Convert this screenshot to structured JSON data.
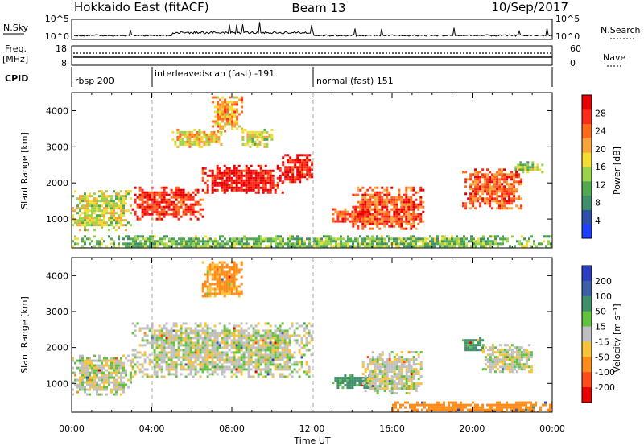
{
  "header": {
    "station": "Hokkaido East (fitACF)",
    "beam": "Beam 13",
    "date": "10/Sep/2017"
  },
  "panel_labels": {
    "nsky": "N.Sky",
    "freq_top": "Freq.",
    "freq_unit": "[MHz]",
    "cpid": "CPID",
    "nsearch": "N.Search",
    "nave": "Nave"
  },
  "nsky_axis": {
    "top": "10^5",
    "bottom": "10^0"
  },
  "freq_axis": {
    "top": "18",
    "bottom": "8"
  },
  "nave_axis": {
    "top": "60",
    "bottom": "0"
  },
  "cpid_segments": [
    {
      "label": "rbsp 200",
      "start_hour": 0
    },
    {
      "label": "interleavedscan (fast) -191",
      "start_hour": 4
    },
    {
      "label": "normal (fast) 151",
      "start_hour": 12
    }
  ],
  "x_axis": {
    "label": "Time UT",
    "ticks": [
      "00:00",
      "04:00",
      "08:00",
      "12:00",
      "16:00",
      "20:00",
      "00:00"
    ]
  },
  "y_axis": {
    "label": "Slant Range [km]",
    "ticks": [
      "1000",
      "2000",
      "3000",
      "4000"
    ]
  },
  "power_scale": {
    "title": "Power [dB]",
    "ticks": [
      "4",
      "8",
      "12",
      "16",
      "20",
      "24",
      "28"
    ],
    "colors": [
      "#1f3fff",
      "#2c4fa8",
      "#3f8f6a",
      "#52a84f",
      "#9bd34a",
      "#f4dc32",
      "#f7a53a",
      "#ff6a1a",
      "#ff2a1a",
      "#e80000"
    ]
  },
  "velocity_scale": {
    "title": "Velocity [m s⁻¹]",
    "ticks": [
      "200",
      "100",
      "50",
      "15",
      "-15",
      "-50",
      "-100",
      "-200"
    ],
    "colors": [
      "#2a3fc0",
      "#3c5fa8",
      "#3f8f6a",
      "#62c23f",
      "#bfbfbf",
      "#f7c33a",
      "#ff8c1a",
      "#ff4a1a",
      "#e80000"
    ]
  },
  "chart_data": [
    {
      "type": "heatmap",
      "title": "Power [dB]",
      "xlabel": "Time UT",
      "ylabel": "Slant Range [km]",
      "xlim": [
        0,
        24
      ],
      "ylim": [
        200,
        4500
      ],
      "x_units": "hours UT",
      "regions": [
        {
          "t_start": 0.0,
          "t_end": 3.0,
          "r_low": 700,
          "r_high": 1800,
          "value_db": 16
        },
        {
          "t_start": 3.0,
          "t_end": 6.5,
          "r_low": 1000,
          "r_high": 1900,
          "value_db": 26
        },
        {
          "t_start": 6.5,
          "t_end": 10.5,
          "r_low": 1700,
          "r_high": 2500,
          "value_db": 28
        },
        {
          "t_start": 10.5,
          "t_end": 12.0,
          "r_low": 2000,
          "r_high": 2800,
          "value_db": 28
        },
        {
          "t_start": 5.0,
          "t_end": 7.5,
          "r_low": 3000,
          "r_high": 3500,
          "value_db": 18
        },
        {
          "t_start": 7.0,
          "t_end": 8.5,
          "r_low": 3400,
          "r_high": 4400,
          "value_db": 20
        },
        {
          "t_start": 8.5,
          "t_end": 10.0,
          "r_low": 3000,
          "r_high": 3500,
          "value_db": 16
        },
        {
          "t_start": 13.0,
          "t_end": 15.0,
          "r_low": 900,
          "r_high": 1300,
          "value_db": 24
        },
        {
          "t_start": 14.0,
          "t_end": 17.5,
          "r_low": 700,
          "r_high": 1900,
          "value_db": 24
        },
        {
          "t_start": 19.5,
          "t_end": 22.5,
          "r_low": 1300,
          "r_high": 2400,
          "value_db": 24
        },
        {
          "t_start": 22.0,
          "t_end": 23.5,
          "r_low": 2300,
          "r_high": 2600,
          "value_db": 14
        },
        {
          "t_start": 0.0,
          "t_end": 24.0,
          "r_low": 200,
          "r_high": 550,
          "value_db": 12
        }
      ]
    },
    {
      "type": "heatmap",
      "title": "Velocity [m s⁻¹]",
      "xlabel": "Time UT",
      "ylabel": "Slant Range [km]",
      "xlim": [
        0,
        24
      ],
      "ylim": [
        200,
        4500
      ],
      "x_units": "hours UT",
      "regions": [
        {
          "t_start": 0.0,
          "t_end": 3.0,
          "r_low": 700,
          "r_high": 1800,
          "value_ms": 0
        },
        {
          "t_start": 3.0,
          "t_end": 12.0,
          "r_low": 1200,
          "r_high": 2700,
          "value_ms": 0
        },
        {
          "t_start": 6.5,
          "t_end": 8.5,
          "r_low": 3400,
          "r_high": 4400,
          "value_ms": -40
        },
        {
          "t_start": 13.0,
          "t_end": 15.0,
          "r_low": 900,
          "r_high": 1250,
          "value_ms": 40
        },
        {
          "t_start": 14.5,
          "t_end": 17.5,
          "r_low": 700,
          "r_high": 1900,
          "value_ms": 0
        },
        {
          "t_start": 19.5,
          "t_end": 20.5,
          "r_low": 1900,
          "r_high": 2300,
          "value_ms": 40
        },
        {
          "t_start": 20.5,
          "t_end": 23.0,
          "r_low": 1300,
          "r_high": 2100,
          "value_ms": 0
        },
        {
          "t_start": 16.0,
          "t_end": 24.0,
          "r_low": 200,
          "r_high": 500,
          "value_ms": -60
        }
      ]
    }
  ]
}
